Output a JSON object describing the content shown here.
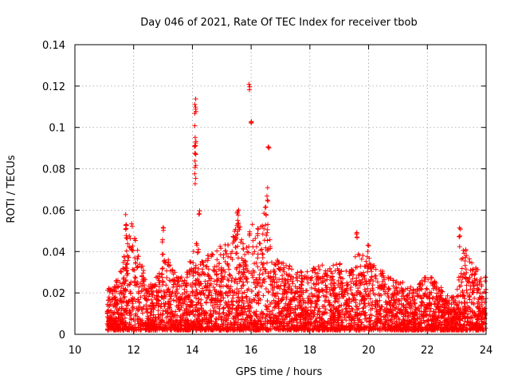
{
  "chart_data": {
    "type": "scatter",
    "title": "Day 046 of 2021, Rate Of TEC Index for receiver tbob",
    "xlabel": "GPS time / hours",
    "ylabel": "ROTI / TECUs",
    "xlim": [
      10,
      24
    ],
    "ylim": [
      0,
      0.14
    ],
    "xticks": [
      "10",
      "12",
      "14",
      "16",
      "18",
      "20",
      "22",
      "24"
    ],
    "yticks": [
      "0",
      "0.02",
      "0.04",
      "0.06",
      "0.08",
      "0.1",
      "0.12",
      "0.14"
    ],
    "grid": true,
    "marker": "+",
    "series": [
      {
        "name": "ROTI",
        "color": "#ff0000",
        "envelope": {
          "x": [
            11.1,
            11.5,
            11.75,
            11.95,
            12.25,
            12.5,
            12.9,
            13.1,
            13.4,
            13.75,
            14.0,
            14.15,
            14.3,
            14.6,
            14.9,
            15.15,
            15.4,
            15.6,
            15.8,
            15.95,
            16.2,
            16.5,
            16.7,
            17.0,
            17.5,
            18.0,
            18.3,
            18.6,
            19.0,
            19.3,
            19.6,
            20.0,
            20.4,
            20.8,
            21.2,
            21.6,
            22.0,
            22.3,
            22.8,
            23.0,
            23.2,
            23.5,
            23.8,
            24.0
          ],
          "y": [
            0.022,
            0.028,
            0.042,
            0.055,
            0.035,
            0.025,
            0.03,
            0.04,
            0.03,
            0.028,
            0.04,
            0.048,
            0.035,
            0.04,
            0.042,
            0.045,
            0.05,
            0.055,
            0.04,
            0.055,
            0.05,
            0.065,
            0.04,
            0.035,
            0.032,
            0.03,
            0.035,
            0.032,
            0.035,
            0.03,
            0.04,
            0.038,
            0.032,
            0.028,
            0.025,
            0.022,
            0.03,
            0.025,
            0.018,
            0.02,
            0.045,
            0.035,
            0.03,
            0.028
          ]
        },
        "clusters": [
          {
            "x": 11.75,
            "y_min": 0.04,
            "y_max": 0.059
          },
          {
            "x": 13.0,
            "y_min": 0.038,
            "y_max": 0.052
          },
          {
            "x": 14.1,
            "y_min": 0.072,
            "y_max": 0.116
          },
          {
            "x": 14.22,
            "y_min": 0.058,
            "y_max": 0.06
          },
          {
            "x": 15.55,
            "y_min": 0.048,
            "y_max": 0.065
          },
          {
            "x": 15.95,
            "y_min": 0.118,
            "y_max": 0.122
          },
          {
            "x": 16.0,
            "y_min": 0.102,
            "y_max": 0.103
          },
          {
            "x": 16.55,
            "y_min": 0.064,
            "y_max": 0.073
          },
          {
            "x": 16.6,
            "y_min": 0.09,
            "y_max": 0.091
          },
          {
            "x": 19.6,
            "y_min": 0.045,
            "y_max": 0.055
          },
          {
            "x": 20.0,
            "y_min": 0.04,
            "y_max": 0.046
          },
          {
            "x": 23.1,
            "y_min": 0.04,
            "y_max": 0.052
          }
        ]
      }
    ]
  }
}
